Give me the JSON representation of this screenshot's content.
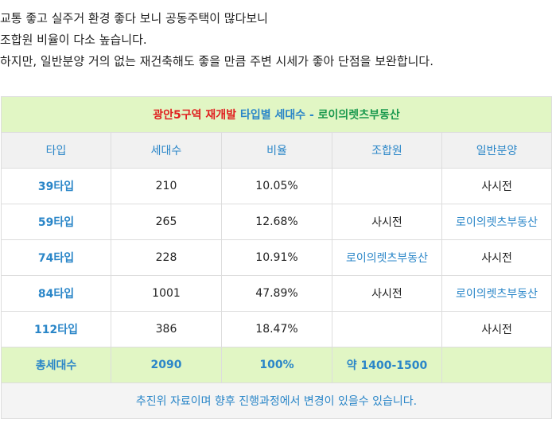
{
  "intro": {
    "lines": [
      "교통 좋고 실주거 환경 좋다 보니 공동주택이 많다보니",
      "조합원 비율이 다소 높습니다.",
      "하지만, 일반분양 거의 없는 재건축해도 좋을 만큼 주변 시세가 좋아 단점을 보완합니다."
    ]
  },
  "table": {
    "title": {
      "part_red": "광안5구역 재개발",
      "part_blue": "타입별 세대수",
      "part_sep": " - ",
      "part_green": "로이의렛츠부동산"
    },
    "headers": [
      "타입",
      "세대수",
      "비율",
      "조합원",
      "일반분양"
    ],
    "rows": [
      {
        "type": "39타입",
        "units": "210",
        "ratio": "10.05%",
        "member": "",
        "general": "사시전",
        "member_link": false,
        "general_link": false
      },
      {
        "type": "59타입",
        "units": "265",
        "ratio": "12.68%",
        "member": "사시전",
        "general": "로이의렛츠부동산",
        "member_link": false,
        "general_link": true
      },
      {
        "type": "74타입",
        "units": "228",
        "ratio": "10.91%",
        "member": "로이의렛츠부동산",
        "general": "사시전",
        "member_link": true,
        "general_link": false
      },
      {
        "type": "84타입",
        "units": "1001",
        "ratio": "47.89%",
        "member": "사시전",
        "general": "로이의렛츠부동산",
        "member_link": false,
        "general_link": true
      },
      {
        "type": "112타입",
        "units": "386",
        "ratio": "18.47%",
        "member": "",
        "general": "사시전",
        "member_link": false,
        "general_link": false
      }
    ],
    "total": {
      "label": "총세대수",
      "units": "2090",
      "ratio": "100%",
      "member": "약 1400-1500",
      "general": ""
    },
    "note": "추진위 자료이며 향후 진행과정에서 변경이 있을수 있습니다.",
    "colors": {
      "accent_blue": "#2a86c8",
      "title_red": "#e02020",
      "title_green": "#1a9a4e",
      "highlight_bg": "#e1f6c4"
    }
  }
}
